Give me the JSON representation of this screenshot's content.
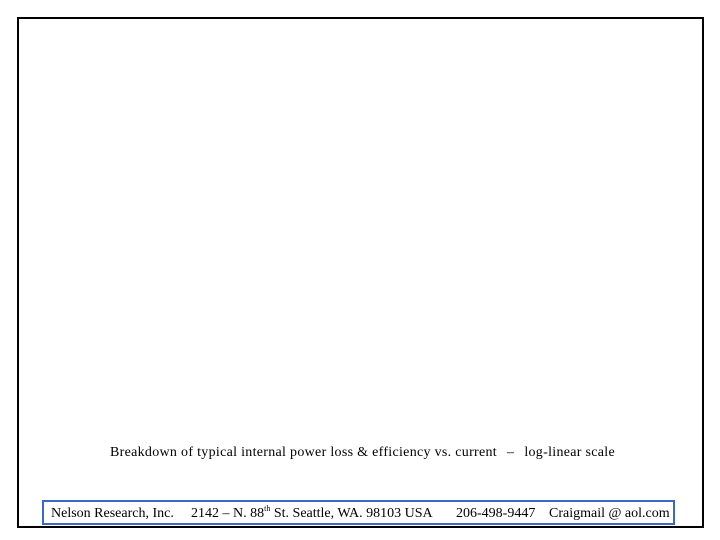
{
  "caption": {
    "text": "Breakdown of typical internal power loss & efficiency vs. current",
    "dash": "–",
    "scale": "log-linear scale"
  },
  "footer": {
    "company": "Nelson Research, Inc.",
    "address_prefix": "2142 – N. 88",
    "address_sup": "th",
    "address_suffix": " St. Seattle, WA. 98103  USA",
    "phone": "206-498-9447",
    "email": "Craigmail @ aol.com"
  },
  "colors": {
    "frame_border": "#000000",
    "footer_border": "#3b67c9"
  }
}
